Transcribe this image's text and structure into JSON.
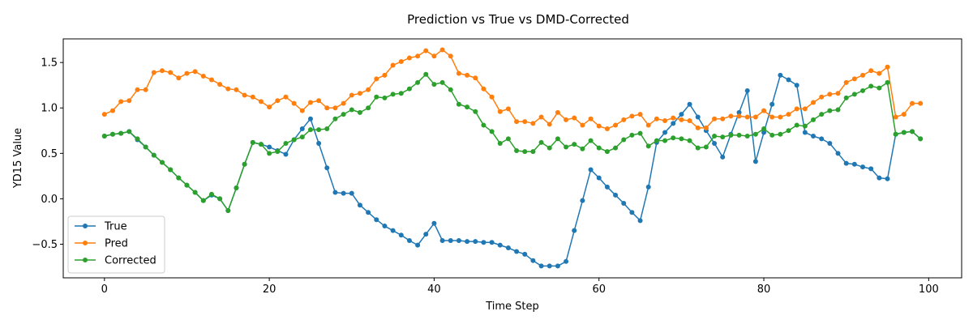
{
  "chart_data": {
    "type": "line",
    "title": "Prediction vs True vs DMD-Corrected",
    "xlabel": "Time Step",
    "ylabel": "YD15 Value",
    "xlim": [
      -5,
      104
    ],
    "ylim": [
      -0.87,
      1.76
    ],
    "xticks": [
      0,
      20,
      40,
      60,
      80,
      100
    ],
    "yticks": [
      -0.5,
      0.0,
      0.5,
      1.0,
      1.5
    ],
    "xtick_labels": [
      "0",
      "20",
      "40",
      "60",
      "80",
      "100"
    ],
    "ytick_labels": [
      "−0.5",
      "0.0",
      "0.5",
      "1.0",
      "1.5"
    ],
    "grid": false,
    "legend_position": "lower-left",
    "series": [
      {
        "name": "True",
        "color": "#1f77b4",
        "values": [
          0.69,
          0.71,
          0.72,
          0.74,
          0.65,
          0.57,
          0.48,
          0.4,
          0.32,
          0.23,
          0.15,
          0.07,
          -0.02,
          0.04,
          0.0,
          -0.13,
          0.12,
          0.38,
          0.62,
          0.6,
          0.57,
          0.53,
          0.49,
          0.65,
          0.77,
          0.88,
          0.61,
          0.34,
          0.07,
          0.06,
          0.06,
          -0.07,
          -0.15,
          -0.23,
          -0.3,
          -0.35,
          -0.4,
          -0.46,
          -0.51,
          -0.39,
          -0.27,
          -0.46,
          -0.46,
          -0.46,
          -0.47,
          -0.47,
          -0.48,
          -0.48,
          -0.51,
          -0.54,
          -0.58,
          -0.61,
          -0.68,
          -0.74,
          -0.74,
          -0.74,
          -0.69,
          -0.35,
          -0.02,
          0.32,
          0.23,
          0.13,
          0.04,
          -0.05,
          -0.15,
          -0.24,
          0.13,
          0.62,
          0.73,
          0.83,
          0.93,
          1.04,
          0.9,
          0.75,
          0.61,
          0.46,
          0.71,
          0.95,
          1.19,
          0.41,
          0.73,
          1.04,
          1.36,
          1.31,
          1.25,
          0.73,
          0.69,
          0.66,
          0.61,
          0.5,
          0.39,
          0.38,
          0.35,
          0.33,
          0.23,
          0.22,
          0.71,
          0.73,
          0.74,
          0.66
        ]
      },
      {
        "name": "Pred",
        "color": "#ff7f0e",
        "values": [
          0.93,
          0.97,
          1.07,
          1.08,
          1.2,
          1.2,
          1.39,
          1.41,
          1.39,
          1.33,
          1.38,
          1.4,
          1.35,
          1.31,
          1.26,
          1.21,
          1.2,
          1.14,
          1.12,
          1.07,
          1.01,
          1.08,
          1.12,
          1.05,
          0.97,
          1.06,
          1.08,
          1.0,
          1.0,
          1.05,
          1.14,
          1.16,
          1.2,
          1.32,
          1.36,
          1.47,
          1.51,
          1.55,
          1.57,
          1.63,
          1.57,
          1.64,
          1.57,
          1.38,
          1.36,
          1.33,
          1.21,
          1.12,
          0.96,
          0.99,
          0.85,
          0.85,
          0.83,
          0.9,
          0.82,
          0.95,
          0.87,
          0.89,
          0.81,
          0.88,
          0.8,
          0.77,
          0.81,
          0.87,
          0.91,
          0.93,
          0.81,
          0.88,
          0.86,
          0.89,
          0.87,
          0.86,
          0.78,
          0.78,
          0.88,
          0.88,
          0.91,
          0.91,
          0.9,
          0.9,
          0.97,
          0.9,
          0.9,
          0.93,
          0.99,
          0.99,
          1.06,
          1.12,
          1.15,
          1.16,
          1.28,
          1.32,
          1.36,
          1.41,
          1.38,
          1.45,
          0.9,
          0.93,
          1.05,
          1.05
        ]
      },
      {
        "name": "Corrected",
        "color": "#2ca02c",
        "values": [
          0.69,
          0.71,
          0.72,
          0.74,
          0.66,
          0.57,
          0.48,
          0.4,
          0.32,
          0.23,
          0.15,
          0.07,
          -0.02,
          0.05,
          0.0,
          -0.13,
          0.12,
          0.38,
          0.62,
          0.6,
          0.5,
          0.52,
          0.61,
          0.65,
          0.68,
          0.76,
          0.76,
          0.77,
          0.88,
          0.93,
          0.98,
          0.95,
          1.0,
          1.12,
          1.11,
          1.15,
          1.16,
          1.21,
          1.28,
          1.37,
          1.26,
          1.28,
          1.2,
          1.04,
          1.01,
          0.96,
          0.81,
          0.74,
          0.61,
          0.66,
          0.53,
          0.52,
          0.52,
          0.62,
          0.56,
          0.66,
          0.57,
          0.6,
          0.55,
          0.64,
          0.56,
          0.52,
          0.56,
          0.65,
          0.7,
          0.72,
          0.58,
          0.64,
          0.64,
          0.67,
          0.66,
          0.64,
          0.56,
          0.57,
          0.69,
          0.68,
          0.7,
          0.7,
          0.69,
          0.71,
          0.77,
          0.7,
          0.71,
          0.75,
          0.81,
          0.8,
          0.87,
          0.93,
          0.97,
          0.98,
          1.11,
          1.15,
          1.19,
          1.24,
          1.22,
          1.28,
          0.71,
          0.73,
          0.74,
          0.66
        ]
      }
    ]
  }
}
